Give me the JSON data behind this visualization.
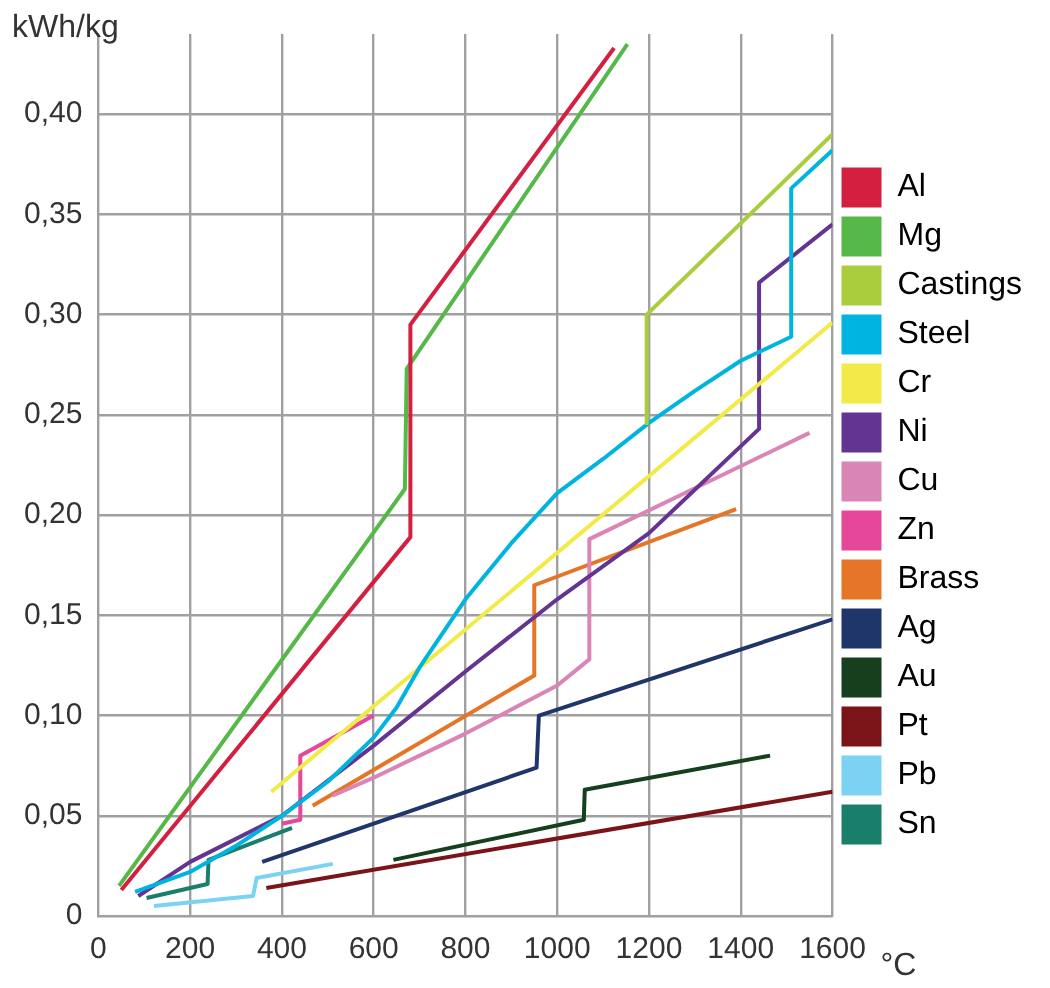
{
  "chart_data": {
    "type": "line",
    "xlabel": "°C",
    "ylabel": "kWh/kg",
    "xlim": [
      0,
      1600
    ],
    "xticks": [
      0,
      200,
      400,
      600,
      800,
      1000,
      1200,
      1400,
      1600
    ],
    "ylim": [
      0,
      0.44
    ],
    "yticks": [
      0,
      {
        "value": 0.05,
        "label": "0,05"
      },
      {
        "value": 0.1,
        "label": "0,10"
      },
      {
        "value": 0.15,
        "label": "0,15"
      },
      {
        "value": 0.2,
        "label": "0,20"
      },
      {
        "value": 0.25,
        "label": "0,25"
      },
      {
        "value": 0.3,
        "label": "0,30"
      },
      {
        "value": 0.35,
        "label": "0,35"
      },
      {
        "value": 0.4,
        "label": "0,40"
      }
    ],
    "grid": true,
    "legend": "right",
    "marker": "none",
    "line_style": "solid",
    "series": [
      {
        "name": "Al",
        "color": "#d42040",
        "x": [
          50,
          680,
          680,
          1124
        ],
        "values": [
          0.013,
          0.189,
          0.295,
          0.433
        ]
      },
      {
        "name": "Mg",
        "color": "#56b849",
        "x": [
          45,
          668,
          672,
          1153
        ],
        "values": [
          0.015,
          0.213,
          0.273,
          0.435
        ]
      },
      {
        "name": "Castings",
        "color": "#a9cd3c",
        "x": [
          1195,
          1195,
          1600
        ],
        "values": [
          0.245,
          0.3,
          0.39
        ]
      },
      {
        "name": "Steel",
        "color": "#00b4e0",
        "x": [
          80,
          200,
          300,
          400,
          500,
          600,
          650,
          700,
          800,
          900,
          1000,
          1100,
          1200,
          1300,
          1400,
          1510,
          1510,
          1600
        ],
        "values": [
          0.012,
          0.022,
          0.035,
          0.05,
          0.067,
          0.089,
          0.104,
          0.124,
          0.158,
          0.186,
          0.211,
          0.228,
          0.246,
          0.262,
          0.277,
          0.289,
          0.363,
          0.382
        ]
      },
      {
        "name": "Cr",
        "color": "#f2ea47",
        "x": [
          377,
          1600
        ],
        "values": [
          0.062,
          0.296
        ]
      },
      {
        "name": "Ni",
        "color": "#643492",
        "x": [
          87,
          200,
          400,
          600,
          800,
          1000,
          1200,
          1440,
          1440,
          1600
        ],
        "values": [
          0.01,
          0.027,
          0.05,
          0.085,
          0.122,
          0.158,
          0.191,
          0.243,
          0.316,
          0.345
        ]
      },
      {
        "name": "Cu",
        "color": "#d986b6",
        "x": [
          510,
          600,
          800,
          1000,
          1070,
          1070,
          1550
        ],
        "values": [
          0.06,
          0.069,
          0.091,
          0.115,
          0.128,
          0.188,
          0.241
        ]
      },
      {
        "name": "Zn",
        "color": "#e5489a",
        "x": [
          400,
          440,
          440,
          600
        ],
        "values": [
          0.046,
          0.048,
          0.08,
          0.1
        ]
      },
      {
        "name": "Brass",
        "color": "#e57628",
        "x": [
          467,
          950,
          950,
          1390
        ],
        "values": [
          0.055,
          0.12,
          0.165,
          0.203
        ]
      },
      {
        "name": "Ag",
        "color": "#1f366b",
        "x": [
          357,
          955,
          960,
          1600
        ],
        "values": [
          0.027,
          0.074,
          0.1,
          0.148
        ]
      },
      {
        "name": "Au",
        "color": "#163f1e",
        "x": [
          643,
          1058,
          1060,
          1464
        ],
        "values": [
          0.028,
          0.048,
          0.063,
          0.08
        ]
      },
      {
        "name": "Pt",
        "color": "#7b1418",
        "x": [
          366,
          1600
        ],
        "values": [
          0.014,
          0.062
        ]
      },
      {
        "name": "Pb",
        "color": "#7bd2f2",
        "x": [
          121,
          337,
          345,
          511
        ],
        "values": [
          0.005,
          0.01,
          0.019,
          0.026
        ]
      },
      {
        "name": "Sn",
        "color": "#1a7f6a",
        "x": [
          105,
          238,
          240,
          422
        ],
        "values": [
          0.009,
          0.016,
          0.028,
          0.044
        ]
      }
    ]
  }
}
